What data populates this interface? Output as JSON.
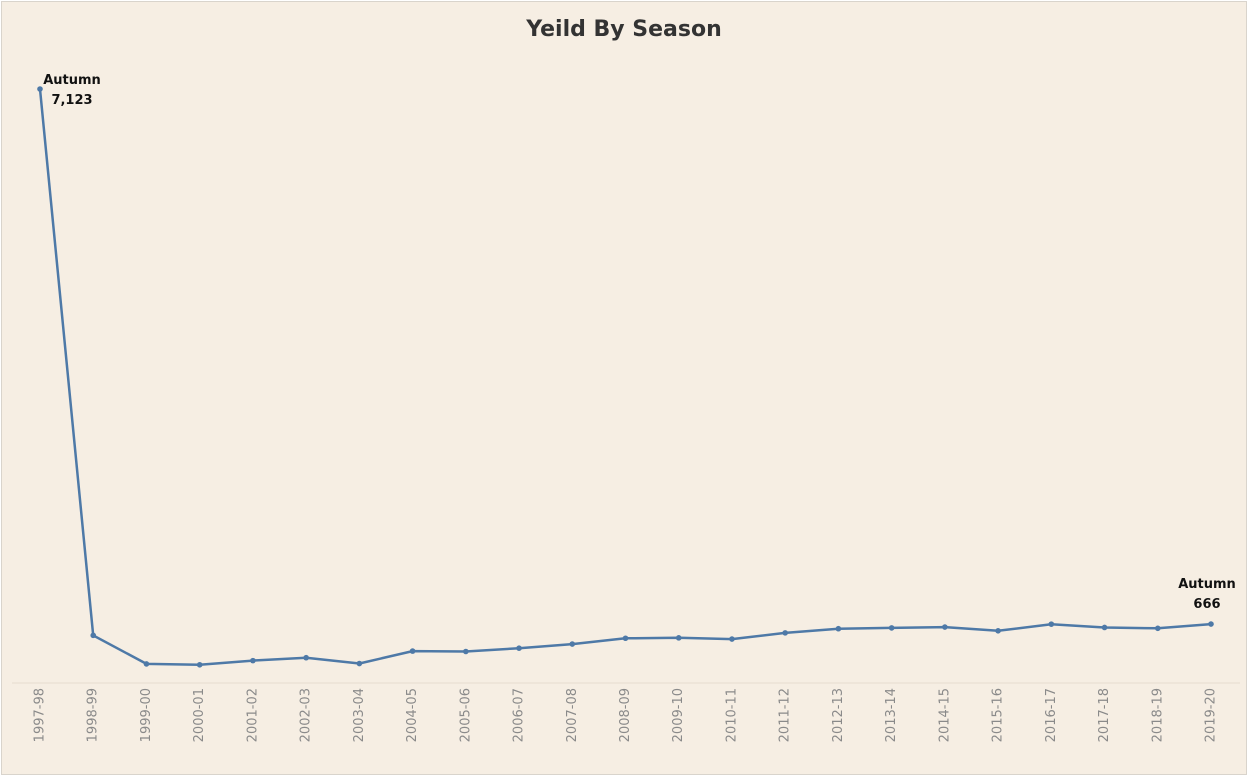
{
  "chart_data": {
    "type": "line",
    "title": "Yeild By Season",
    "xlabel": "",
    "ylabel": "",
    "categories": [
      "1997-98",
      "1998-99",
      "1999-00",
      "2000-01",
      "2001-02",
      "2002-03",
      "2003-04",
      "2004-05",
      "2005-06",
      "2006-07",
      "2007-08",
      "2008-09",
      "2009-10",
      "2010-11",
      "2011-12",
      "2012-13",
      "2013-14",
      "2014-15",
      "2015-16",
      "2016-17",
      "2017-18",
      "2018-19",
      "2019-20"
    ],
    "series": [
      {
        "values": [
          7123,
          530,
          185,
          175,
          225,
          260,
          190,
          340,
          335,
          375,
          425,
          495,
          500,
          485,
          560,
          610,
          620,
          630,
          585,
          665,
          625,
          615,
          666
        ]
      }
    ],
    "ylim": [
      -45,
      7123
    ],
    "grid": false,
    "line_color": "#4e79a7",
    "annotations": [
      {
        "label": "Autumn",
        "value_text": "7,123",
        "index": 0
      },
      {
        "label": "Autumn",
        "value_text": "666",
        "index": 22
      }
    ]
  }
}
